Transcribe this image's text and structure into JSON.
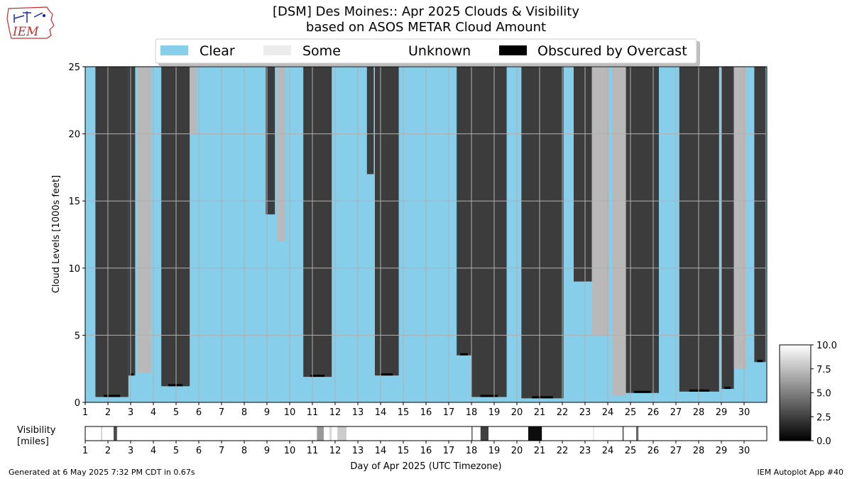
{
  "title_line1": "[DSM] Des Moines:: Apr 2025 Clouds & Visibility",
  "title_line2": "based on ASOS METAR Cloud Amount",
  "logo_text": "IEM",
  "footer_left": "Generated at 6 May 2025 7:32 PM CDT in 0.67s",
  "footer_right": "IEM Autoplot App #40",
  "colors": {
    "clear": "#87ceeb",
    "some": "#b9b9b9",
    "broken": "#3c3c3c",
    "obscured": "#000000",
    "grid": "#b0b0b0"
  },
  "chart_data": [
    {
      "type": "heatmap",
      "name": "cloud-levels",
      "ylabel": "Cloud Levels [1000s feet]",
      "xlabel": "",
      "xlim": [
        1,
        31
      ],
      "ylim": [
        0,
        25
      ],
      "yticks": [
        "0",
        "5",
        "10",
        "15",
        "20",
        "25"
      ],
      "xticks": [
        "1",
        "2",
        "3",
        "4",
        "5",
        "6",
        "7",
        "8",
        "9",
        "10",
        "11",
        "12",
        "13",
        "14",
        "15",
        "16",
        "17",
        "18",
        "19",
        "20",
        "21",
        "22",
        "23",
        "24",
        "25",
        "26",
        "27",
        "28",
        "29",
        "30"
      ],
      "grid": true,
      "legend": {
        "placement": "top-center",
        "entries": [
          {
            "label": "Clear",
            "color": "#87ceeb"
          },
          {
            "label": "Some",
            "color": "#ececec"
          },
          {
            "label": "Unknown",
            "color": "#ffffff"
          },
          {
            "label": "Obscured by Overcast",
            "color": "#000000"
          }
        ]
      },
      "cloud_episodes_day_base_kft": [
        {
          "start": 1.45,
          "end": 2.9,
          "base": 0.4,
          "coverage": "overcast"
        },
        {
          "start": 2.9,
          "end": 3.2,
          "base": 2.0,
          "coverage": "overcast"
        },
        {
          "start": 3.3,
          "end": 3.9,
          "base": 2.2,
          "coverage": "scattered"
        },
        {
          "start": 4.35,
          "end": 5.6,
          "base": 1.2,
          "coverage": "overcast"
        },
        {
          "start": 5.6,
          "end": 5.9,
          "base": 20.0,
          "coverage": "scattered"
        },
        {
          "start": 8.95,
          "end": 9.35,
          "base": 14.0,
          "coverage": "overcast"
        },
        {
          "start": 9.45,
          "end": 9.8,
          "base": 12.0,
          "coverage": "scattered"
        },
        {
          "start": 10.6,
          "end": 11.85,
          "base": 1.9,
          "coverage": "overcast"
        },
        {
          "start": 13.4,
          "end": 13.7,
          "base": 17.0,
          "coverage": "overcast"
        },
        {
          "start": 13.75,
          "end": 14.8,
          "base": 2.0,
          "coverage": "overcast"
        },
        {
          "start": 17.35,
          "end": 18.0,
          "base": 3.5,
          "coverage": "overcast"
        },
        {
          "start": 18.0,
          "end": 19.55,
          "base": 0.4,
          "coverage": "overcast"
        },
        {
          "start": 20.2,
          "end": 22.05,
          "base": 0.3,
          "coverage": "overcast"
        },
        {
          "start": 22.5,
          "end": 23.3,
          "base": 9.0,
          "coverage": "overcast"
        },
        {
          "start": 23.3,
          "end": 24.05,
          "base": 5.0,
          "coverage": "scattered"
        },
        {
          "start": 24.2,
          "end": 24.8,
          "base": 0.5,
          "coverage": "scattered"
        },
        {
          "start": 24.8,
          "end": 26.25,
          "base": 0.7,
          "coverage": "overcast"
        },
        {
          "start": 27.15,
          "end": 28.9,
          "base": 0.8,
          "coverage": "overcast"
        },
        {
          "start": 29.0,
          "end": 29.55,
          "base": 1.0,
          "coverage": "overcast"
        },
        {
          "start": 29.55,
          "end": 30.1,
          "base": 2.5,
          "coverage": "scattered"
        },
        {
          "start": 30.45,
          "end": 30.95,
          "base": 3.0,
          "coverage": "overcast"
        }
      ]
    },
    {
      "type": "heatmap",
      "name": "visibility",
      "ylabel": "Visibility\n[miles]",
      "xlabel": "Day of Apr 2025 (UTC Timezone)",
      "xlim": [
        1,
        31
      ],
      "xticks": [
        "1",
        "2",
        "3",
        "4",
        "5",
        "6",
        "7",
        "8",
        "9",
        "10",
        "11",
        "12",
        "13",
        "14",
        "15",
        "16",
        "17",
        "18",
        "19",
        "20",
        "21",
        "22",
        "23",
        "24",
        "25",
        "26",
        "27",
        "28",
        "29",
        "30"
      ],
      "colorbar": {
        "range": [
          0.0,
          10.0
        ],
        "ticks": [
          "0.0",
          "2.5",
          "5.0",
          "7.5",
          "10.0"
        ],
        "colormap": "greys"
      },
      "reductions_day_miles": [
        {
          "start": 1.7,
          "end": 1.75,
          "value": 8.0
        },
        {
          "start": 2.25,
          "end": 2.4,
          "value": 3.0
        },
        {
          "start": 11.2,
          "end": 11.5,
          "value": 6.0
        },
        {
          "start": 11.75,
          "end": 11.85,
          "value": 8.5
        },
        {
          "start": 12.1,
          "end": 12.5,
          "value": 8.0
        },
        {
          "start": 18.0,
          "end": 18.05,
          "value": 4.0
        },
        {
          "start": 18.4,
          "end": 18.75,
          "value": 2.5
        },
        {
          "start": 20.5,
          "end": 21.1,
          "value": 0.5
        },
        {
          "start": 23.35,
          "end": 23.4,
          "value": 9.0
        },
        {
          "start": 24.65,
          "end": 24.7,
          "value": 3.0
        },
        {
          "start": 25.25,
          "end": 25.35,
          "value": 4.0
        }
      ]
    }
  ]
}
